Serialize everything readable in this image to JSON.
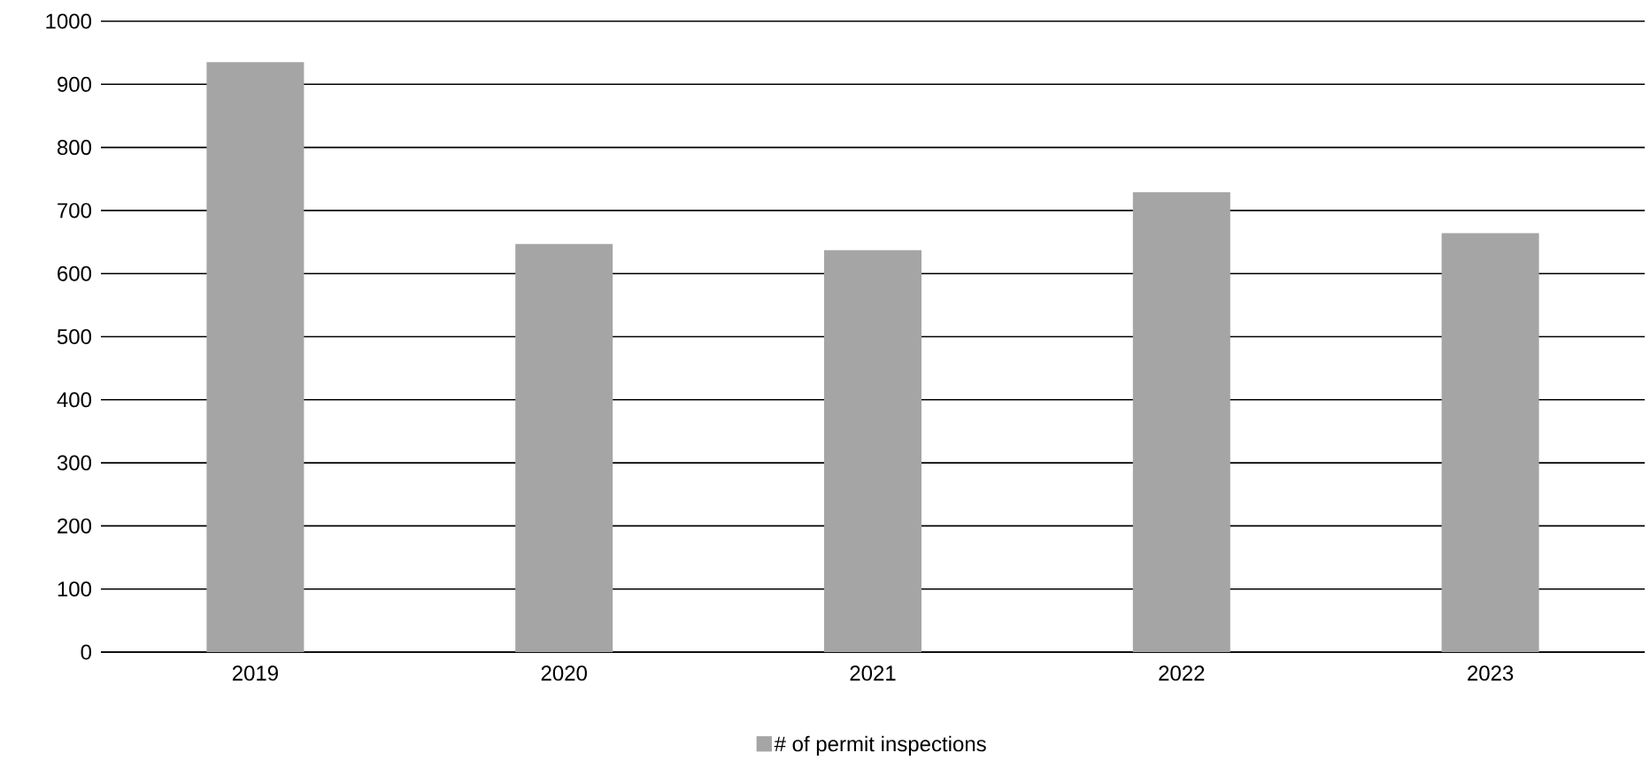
{
  "chart_data": {
    "type": "bar",
    "categories": [
      "2019",
      "2020",
      "2021",
      "2022",
      "2023"
    ],
    "series": [
      {
        "name": "# of permit inspections",
        "color": "#a5a5a5",
        "values": [
          935,
          647,
          637,
          729,
          664
        ]
      }
    ],
    "ylim": [
      0,
      1000
    ],
    "yticks": [
      0,
      100,
      200,
      300,
      400,
      500,
      600,
      700,
      800,
      900,
      1000
    ],
    "grid": "y",
    "legend": "bottom"
  }
}
